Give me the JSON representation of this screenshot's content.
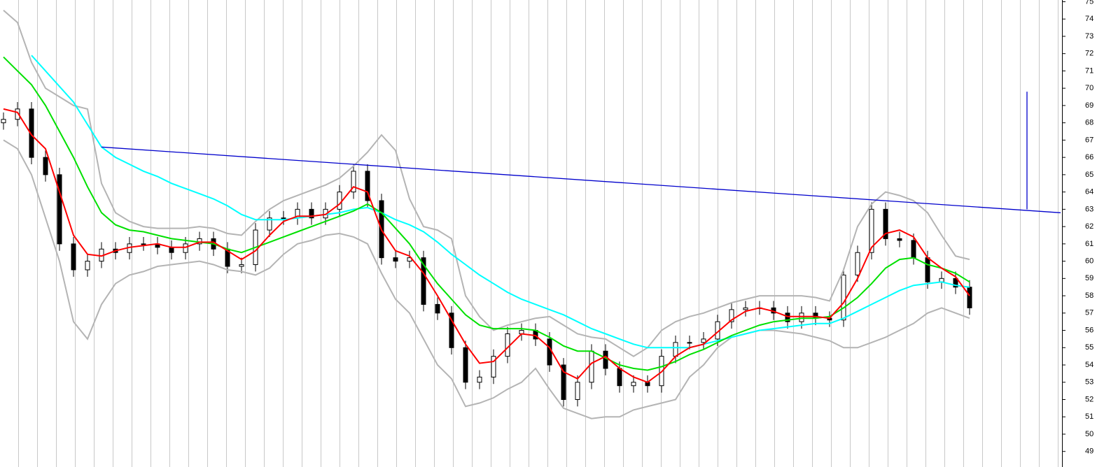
{
  "chart_data": {
    "type": "candlestick",
    "xlim": [
      -0.25,
      75.6
    ],
    "ylim": [
      48.1,
      75.1
    ],
    "yticks": [
      49,
      50,
      51,
      52,
      53,
      54,
      55,
      56,
      57,
      58,
      59,
      60,
      61,
      62,
      63,
      64,
      65,
      66,
      67,
      68,
      69,
      70,
      71,
      72,
      73,
      74,
      75
    ],
    "up_color": "#ffffff",
    "down_color": "#000000",
    "candles": {
      "open": [
        68.0,
        68.2,
        68.8,
        66.0,
        65.0,
        61.0,
        59.5,
        60.0,
        60.7,
        60.5,
        61.0,
        61.0,
        60.8,
        60.5,
        61.0,
        61.3,
        60.7,
        59.7,
        59.8,
        61.8,
        62.5,
        62.5,
        63.0,
        62.5,
        63.0,
        64.0,
        65.2,
        63.5,
        60.2,
        60.0,
        60.2,
        57.5,
        57.0,
        55.0,
        53.0,
        53.3,
        54.5,
        55.8,
        56.0,
        55.5,
        54.0,
        52.0,
        53.0,
        54.8,
        53.8,
        52.8,
        53.0,
        52.8,
        54.5,
        55.3,
        55.3,
        55.5,
        56.5,
        57.2,
        57.3,
        57.3,
        57.0,
        56.5,
        57.0,
        56.7,
        56.6,
        59.2,
        60.5,
        63.0,
        61.3,
        61.2,
        60.2,
        58.8,
        59.0,
        58.5
      ],
      "high": [
        68.6,
        69.2,
        69.2,
        66.4,
        65.4,
        61.4,
        60.4,
        61.1,
        61.1,
        61.4,
        61.4,
        61.4,
        61.2,
        61.4,
        61.7,
        61.7,
        61.1,
        60.2,
        62.2,
        62.9,
        62.9,
        63.4,
        63.4,
        63.4,
        64.4,
        65.6,
        65.6,
        63.9,
        60.6,
        60.6,
        60.6,
        57.9,
        57.4,
        55.4,
        53.7,
        54.9,
        56.2,
        56.4,
        56.4,
        55.9,
        54.4,
        53.4,
        55.2,
        55.2,
        54.2,
        53.4,
        53.4,
        54.9,
        55.7,
        55.7,
        55.9,
        56.9,
        57.6,
        57.7,
        57.7,
        57.7,
        57.4,
        57.4,
        57.4,
        57.1,
        59.6,
        60.9,
        63.4,
        63.4,
        61.7,
        61.6,
        60.6,
        59.4,
        59.4,
        58.9
      ],
      "low": [
        67.6,
        67.8,
        65.6,
        64.6,
        60.6,
        59.1,
        59.1,
        59.6,
        60.1,
        60.1,
        60.6,
        60.4,
        60.1,
        60.1,
        60.6,
        60.3,
        59.3,
        59.3,
        59.4,
        61.4,
        62.1,
        62.1,
        62.1,
        62.1,
        62.6,
        63.6,
        63.1,
        59.8,
        59.6,
        59.6,
        57.1,
        56.6,
        54.6,
        52.6,
        52.6,
        52.9,
        54.1,
        55.4,
        55.1,
        53.6,
        51.6,
        51.6,
        52.6,
        53.4,
        52.4,
        52.4,
        52.4,
        52.4,
        54.1,
        54.9,
        54.9,
        55.1,
        56.1,
        56.8,
        56.9,
        56.6,
        56.1,
        56.1,
        56.3,
        56.2,
        56.2,
        58.8,
        60.1,
        60.9,
        60.8,
        59.8,
        58.4,
        58.4,
        58.1,
        56.9
      ],
      "close": [
        68.2,
        68.8,
        66.0,
        65.0,
        61.0,
        59.5,
        60.0,
        60.7,
        60.5,
        61.0,
        61.0,
        60.8,
        60.5,
        61.0,
        61.3,
        60.7,
        59.7,
        59.8,
        61.8,
        62.5,
        62.5,
        63.0,
        62.5,
        63.0,
        64.0,
        65.2,
        63.5,
        60.2,
        60.0,
        60.2,
        57.5,
        57.0,
        55.0,
        53.0,
        53.3,
        54.5,
        55.8,
        56.0,
        55.5,
        54.0,
        52.0,
        53.0,
        54.8,
        53.8,
        52.8,
        53.0,
        52.8,
        54.5,
        55.3,
        55.3,
        55.5,
        56.5,
        57.2,
        57.3,
        57.3,
        57.0,
        56.5,
        57.0,
        56.7,
        56.6,
        59.2,
        60.5,
        63.0,
        61.3,
        61.2,
        60.2,
        58.8,
        59.0,
        58.5,
        57.3
      ]
    },
    "lines": [
      {
        "color": "#b4b4b4",
        "values": [
          74.5,
          73.8,
          71.5,
          70.0,
          69.5,
          69.0,
          68.8,
          64.5,
          62.8,
          62.3,
          62.0,
          61.9,
          61.9,
          61.9,
          62.0,
          61.9,
          61.6,
          61.5,
          62.3,
          63.0,
          63.5,
          63.8,
          64.1,
          64.4,
          64.8,
          65.5,
          66.3,
          67.3,
          66.4,
          63.6,
          62.0,
          61.8,
          61.3,
          58.0,
          56.8,
          56.0,
          56.3,
          56.5,
          56.7,
          56.8,
          56.3,
          55.8,
          55.6,
          55.5,
          55.0,
          54.5,
          55.0,
          56.0,
          56.5,
          56.8,
          57.0,
          57.3,
          57.6,
          57.8,
          58.0,
          58.0,
          58.0,
          58.0,
          57.9,
          57.7,
          59.5,
          62.0,
          63.3,
          64.0,
          63.8,
          63.5,
          62.8,
          61.5,
          60.3,
          60.1
        ]
      },
      {
        "color": "#b4b4b4",
        "values": [
          67.0,
          66.5,
          65.0,
          62.5,
          60.0,
          56.5,
          55.5,
          57.5,
          58.7,
          59.2,
          59.4,
          59.7,
          59.8,
          59.9,
          60.0,
          59.8,
          59.5,
          59.4,
          59.2,
          59.6,
          60.4,
          61.0,
          61.2,
          61.5,
          61.6,
          61.4,
          61.0,
          59.3,
          57.8,
          57.0,
          55.5,
          54.0,
          53.2,
          51.6,
          51.8,
          52.1,
          52.6,
          53.0,
          53.8,
          52.6,
          51.5,
          51.2,
          50.9,
          51.0,
          51.0,
          51.4,
          51.6,
          51.8,
          52.0,
          53.3,
          54.0,
          55.0,
          55.6,
          55.8,
          56.0,
          56.0,
          55.9,
          55.8,
          55.6,
          55.4,
          55.0,
          55.0,
          55.3,
          55.6,
          56.0,
          56.4,
          57.0,
          57.3,
          57.0,
          56.7
        ]
      },
      {
        "color": "#00ffff",
        "values": [
          null,
          null,
          71.9,
          71.0,
          70.1,
          69.2,
          67.9,
          66.6,
          66.0,
          65.6,
          65.2,
          64.9,
          64.5,
          64.2,
          63.9,
          63.6,
          63.2,
          62.7,
          62.4,
          62.4,
          62.4,
          62.5,
          62.6,
          62.7,
          62.8,
          63.0,
          63.1,
          62.8,
          62.4,
          62.1,
          61.7,
          61.1,
          60.4,
          59.8,
          59.2,
          58.7,
          58.2,
          57.8,
          57.5,
          57.2,
          56.9,
          56.5,
          56.1,
          55.8,
          55.5,
          55.2,
          55.0,
          55.0,
          55.0,
          55.0,
          55.2,
          55.4,
          55.6,
          55.8,
          56.0,
          56.1,
          56.2,
          56.3,
          56.4,
          56.4,
          56.7,
          57.1,
          57.5,
          57.9,
          58.3,
          58.6,
          58.7,
          58.8,
          58.6,
          58.5
        ]
      },
      {
        "color": "#00e000",
        "values": [
          71.8,
          71.0,
          70.2,
          69.0,
          67.5,
          66.0,
          64.3,
          62.8,
          62.1,
          61.8,
          61.7,
          61.5,
          61.3,
          61.2,
          61.1,
          61.0,
          60.7,
          60.5,
          60.8,
          61.1,
          61.4,
          61.7,
          62.0,
          62.3,
          62.6,
          62.9,
          63.3,
          62.8,
          61.9,
          61.0,
          59.8,
          58.7,
          57.8,
          56.9,
          56.3,
          56.1,
          56.1,
          56.1,
          56.0,
          55.6,
          55.1,
          54.8,
          54.8,
          54.4,
          54.0,
          53.8,
          53.7,
          53.9,
          54.2,
          54.6,
          54.9,
          55.3,
          55.7,
          56.0,
          56.3,
          56.5,
          56.6,
          56.7,
          56.7,
          56.8,
          57.3,
          57.9,
          58.7,
          59.6,
          60.1,
          60.2,
          59.8,
          59.6,
          59.3,
          58.8
        ]
      },
      {
        "color": "#ff0000",
        "values": [
          68.8,
          68.6,
          67.3,
          66.5,
          64.0,
          61.5,
          60.4,
          60.3,
          60.6,
          60.8,
          60.9,
          61.0,
          60.8,
          60.8,
          61.1,
          61.1,
          60.6,
          60.1,
          60.6,
          61.5,
          62.3,
          62.6,
          62.6,
          62.7,
          63.3,
          64.3,
          64.0,
          61.8,
          60.6,
          60.3,
          59.3,
          58.0,
          56.6,
          55.2,
          54.1,
          54.2,
          55.0,
          55.8,
          55.7,
          55.0,
          53.6,
          53.2,
          54.1,
          54.5,
          53.8,
          53.3,
          53.0,
          53.6,
          54.5,
          55.0,
          55.2,
          55.9,
          56.6,
          57.1,
          57.3,
          57.1,
          56.8,
          56.8,
          56.8,
          56.7,
          57.6,
          59.0,
          60.8,
          61.6,
          61.8,
          61.4,
          60.2,
          59.6,
          59.1,
          58.0
        ]
      }
    ],
    "trendlines": [
      {
        "color": "#0000cc",
        "x": [
          7,
          75.5
        ],
        "y": [
          66.6,
          62.8
        ]
      },
      {
        "color": "#0000cc",
        "x": [
          73.1,
          73.1
        ],
        "y": [
          63.0,
          69.8
        ]
      }
    ]
  }
}
